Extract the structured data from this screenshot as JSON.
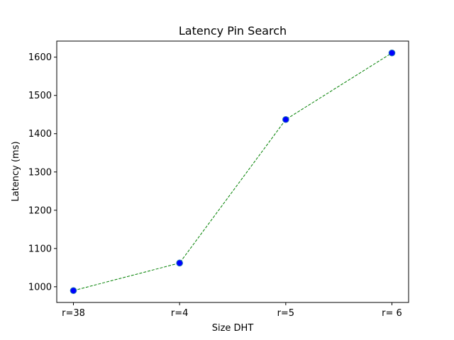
{
  "chart_data": {
    "type": "line",
    "title": "Latency Pin Search",
    "xlabel": "Size DHT",
    "ylabel": "Latency (ms)",
    "categories": [
      "r=38",
      "r=4",
      "r=5",
      "r= 6"
    ],
    "series": [
      {
        "values": [
          990,
          1062,
          1437,
          1611
        ]
      }
    ],
    "ylim": [
      959,
      1642
    ],
    "yticks": [
      1000,
      1100,
      1200,
      1300,
      1400,
      1500,
      1600
    ],
    "grid": false,
    "line_color": "#008000",
    "line_style": "dashed",
    "marker_face_color": "#0000ff",
    "marker_edge_color": "#1f77b4"
  }
}
